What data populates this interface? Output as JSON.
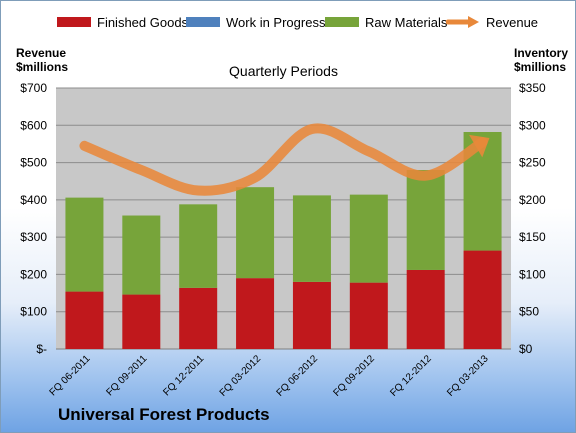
{
  "legend": {
    "finished_goods": "Finished Goods",
    "wip": "Work in Progress",
    "raw_materials": "Raw Materials",
    "revenue": "Revenue"
  },
  "left_axis_title": [
    "Revenue",
    "$millions"
  ],
  "right_axis_title": [
    "Inventory",
    "$millions"
  ],
  "footer": "Universal Forest Products",
  "colors": {
    "finished_goods": "#c0181c",
    "wip": "#4f81bd",
    "raw_materials": "#77a43a",
    "revenue": "#e8883a",
    "plot_bg": "#c8c8c8"
  },
  "chart_data": {
    "type": "bar",
    "title": "Quarterly Periods",
    "categories": [
      "FQ 06-2011",
      "FQ 09-2011",
      "FQ 12-2011",
      "FQ 03-2012",
      "FQ 06-2012",
      "FQ 09-2012",
      "FQ 12-2012",
      "FQ 03-2013"
    ],
    "stacked": true,
    "series": [
      {
        "name": "Finished Goods",
        "axis": "right",
        "values": [
          77,
          73,
          82,
          95,
          90,
          89,
          106,
          132
        ]
      },
      {
        "name": "Work in Progress",
        "axis": "right",
        "values": [
          0,
          0,
          0,
          0,
          0,
          0,
          0,
          0
        ]
      },
      {
        "name": "Raw Materials",
        "axis": "right",
        "values": [
          126,
          106,
          112,
          122,
          116,
          118,
          134,
          159
        ]
      },
      {
        "name": "Revenue",
        "type": "line",
        "axis": "left",
        "values": [
          545,
          480,
          425,
          460,
          590,
          530,
          465,
          555
        ]
      }
    ],
    "y_left": {
      "min": 0,
      "max": 700,
      "ticks": [
        "$-",
        "$100",
        "$200",
        "$300",
        "$400",
        "$500",
        "$600",
        "$700"
      ]
    },
    "y_right": {
      "min": 0,
      "max": 350,
      "ticks": [
        "$0",
        "$50",
        "$100",
        "$150",
        "$200",
        "$250",
        "$300",
        "$350"
      ]
    },
    "grid": true,
    "legend": "top"
  }
}
